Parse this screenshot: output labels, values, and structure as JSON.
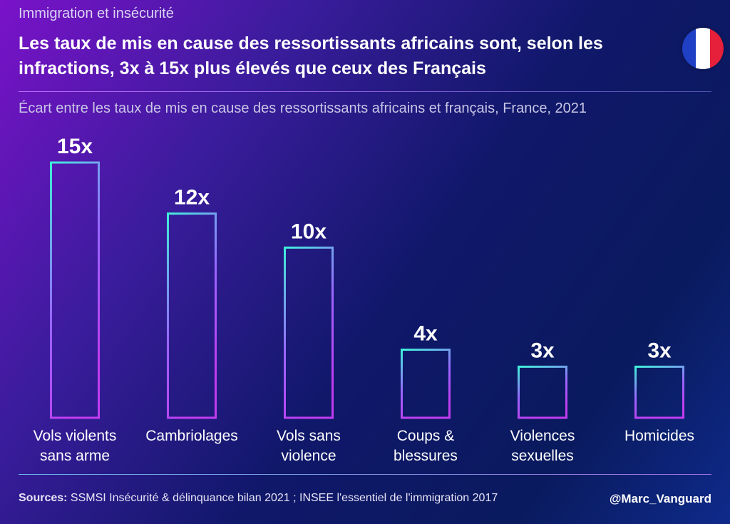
{
  "header": {
    "kicker": "Immigration et insécurité",
    "headline": "Les taux de mis en cause des ressortissants africains sont, selon les infractions, 3x à 15x plus élevés que ceux des Français",
    "subtitle": "Écart entre les taux de mis en cause des ressortissants africains et français, France, 2021",
    "flag_icon": "france-flag-icon",
    "flag_colors": [
      "#1f3fc4",
      "#ffffff",
      "#e6203a"
    ]
  },
  "chart_data": {
    "type": "bar",
    "title": "Les taux de mis en cause des ressortissants africains sont, selon les infractions, 3x à 15x plus élevés que ceux des Français",
    "subtitle": "Écart entre les taux de mis en cause des ressortissants africains et français, France, 2021",
    "categories": [
      [
        "Vols violents",
        "sans arme"
      ],
      [
        "Cambriolages"
      ],
      [
        "Vols sans",
        "violence"
      ],
      [
        "Coups &",
        "blessures"
      ],
      [
        "Violences",
        "sexuelles"
      ],
      [
        "Homicides"
      ]
    ],
    "values": [
      15,
      12,
      10,
      4,
      3,
      3
    ],
    "value_labels": [
      "15x",
      "12x",
      "10x",
      "4x",
      "3x",
      "3x"
    ],
    "ylim": [
      0,
      15
    ],
    "grid": false,
    "legend": "none",
    "bar_gradient": [
      "#3ff0d8",
      "#9a66ff",
      "#c23cf0"
    ]
  },
  "footer": {
    "sources_label": "Sources:",
    "sources_text": " SSMSI Insécurité & délinquance bilan 2021 ; INSEE l'essentiel de l'immigration 2017",
    "handle": "@Marc_Vanguard"
  }
}
